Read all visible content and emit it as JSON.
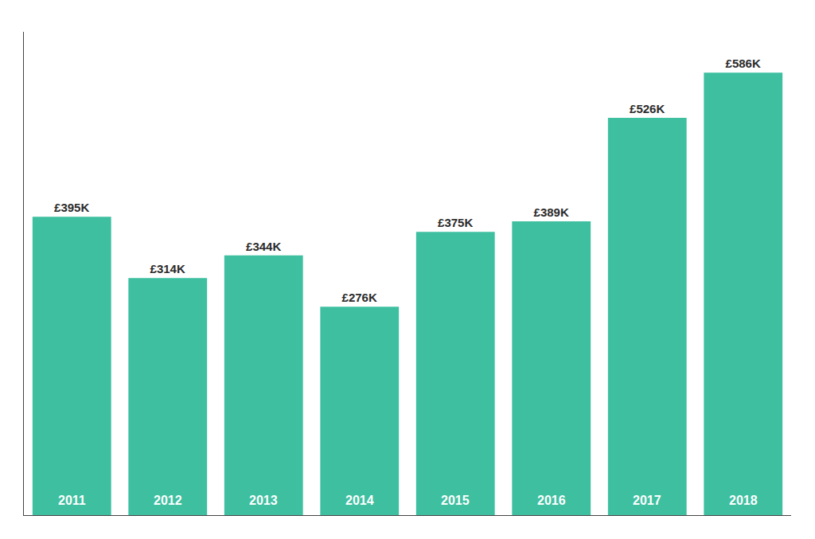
{
  "chart_data": {
    "type": "bar",
    "categories": [
      "2011",
      "2012",
      "2013",
      "2014",
      "2015",
      "2016",
      "2017",
      "2018"
    ],
    "values": [
      395,
      314,
      344,
      276,
      375,
      389,
      526,
      586
    ],
    "value_labels": [
      "£395K",
      "£314K",
      "£344K",
      "£276K",
      "£375K",
      "£389K",
      "£526K",
      "£586K"
    ],
    "data_labels": true,
    "color": "#3dbfa0",
    "ylim": [
      0,
      640
    ],
    "tick_labels": false,
    "grid": false
  }
}
